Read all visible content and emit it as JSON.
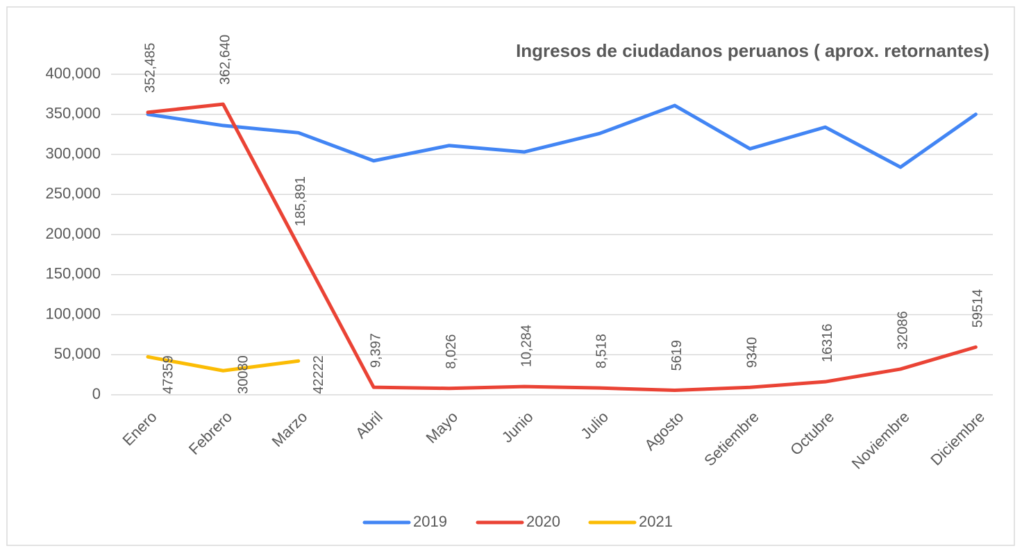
{
  "chart_data": {
    "type": "line",
    "title": "Ingresos de ciudadanos peruanos ( aprox. retornantes)",
    "categories": [
      "Enero",
      "Febrero",
      "Marzo",
      "Abril",
      "Mayo",
      "Junio",
      "Julio",
      "Agosto",
      "Setiembre",
      "Octubre",
      "Noviembre",
      "Diciembre"
    ],
    "series": [
      {
        "name": "2019",
        "color": "#4285f4",
        "values": [
          350000,
          336000,
          327000,
          292000,
          311000,
          303000,
          326000,
          361000,
          307000,
          334000,
          284000,
          350000
        ]
      },
      {
        "name": "2020",
        "color": "#ea4335",
        "values": [
          352485,
          362640,
          185891,
          9397,
          8026,
          10284,
          8518,
          5619,
          9340,
          16316,
          32086,
          59514
        ],
        "value_labels": [
          "352,485",
          "362,640",
          "185,891",
          "9,397",
          "8,026",
          "10,284",
          "8,518",
          "5619",
          "9340",
          "16316",
          "32086",
          "59514"
        ]
      },
      {
        "name": "2021",
        "color": "#fbbc04",
        "values": [
          47359,
          30080,
          42222,
          null,
          null,
          null,
          null,
          null,
          null,
          null,
          null,
          null
        ]
      }
    ],
    "ylim": [
      0,
      400000
    ],
    "yticks": [
      0,
      {
        "value": 50000,
        "label": "50,000"
      },
      {
        "value": 100000,
        "label": "100,000"
      },
      {
        "value": 150000,
        "label": "150,000"
      },
      {
        "value": 200000,
        "label": "200,000"
      },
      {
        "value": 250000,
        "label": "250,000"
      },
      {
        "value": 300000,
        "label": "300,000"
      },
      {
        "value": 350000,
        "label": "350,000"
      },
      {
        "value": 400000,
        "label": "400,000"
      }
    ],
    "grid": true,
    "legend": "bottom"
  }
}
